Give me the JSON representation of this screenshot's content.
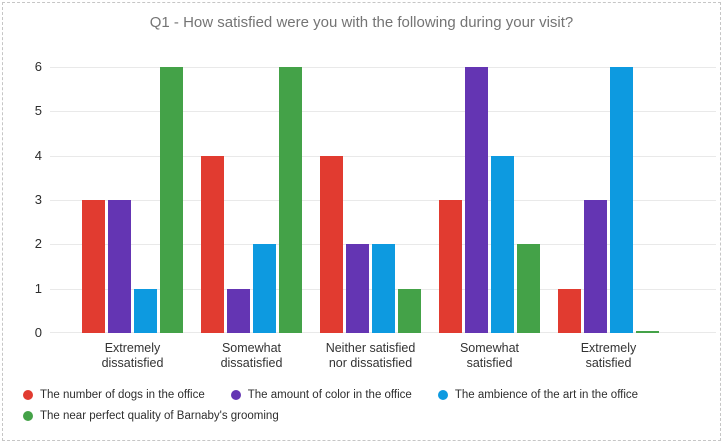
{
  "chart_data": {
    "type": "bar",
    "title": "Q1 - How satisfied were you with the following during your visit?",
    "categories": [
      "Extremely\ndissatisfied",
      "Somewhat\ndissatisfied",
      "Neither satisfied\nnor dissatisfied",
      "Somewhat\nsatisfied",
      "Extremely\nsatisfied"
    ],
    "series": [
      {
        "name": "The number of dogs in the office",
        "color": "#E13B30",
        "values": [
          3,
          4,
          4,
          3,
          1
        ]
      },
      {
        "name": "The amount of color in the office",
        "color": "#6435B3",
        "values": [
          3,
          1,
          2,
          6,
          3
        ]
      },
      {
        "name": "The ambience of the art in the office",
        "color": "#0D9AE0",
        "values": [
          1,
          2,
          2,
          4,
          6
        ]
      },
      {
        "name": "The near perfect quality of Barnaby's grooming",
        "color": "#44A248",
        "values": [
          6,
          6,
          1,
          2,
          0
        ]
      }
    ],
    "ylim": [
      0,
      6
    ],
    "yticks": [
      0,
      1,
      2,
      3,
      4,
      5,
      6
    ],
    "grid": "horizontal",
    "legend_position": "bottom"
  }
}
